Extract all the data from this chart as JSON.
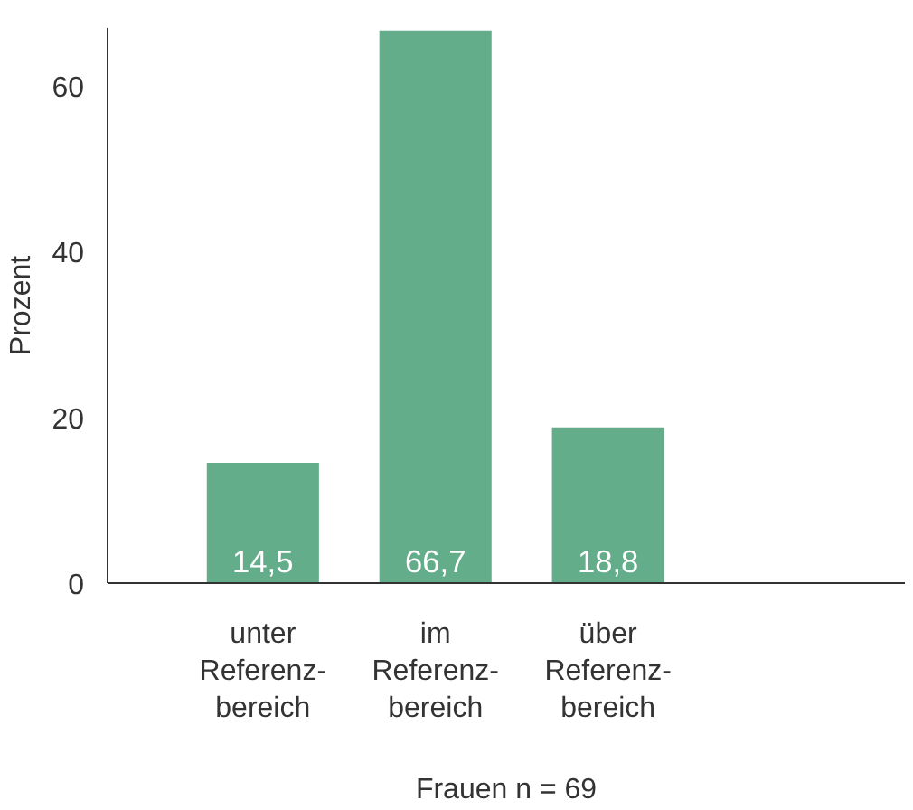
{
  "chart_data": {
    "type": "bar",
    "categories": [
      "unter\nReferenz-\nbereich",
      "im\nReferenz-\nbereich",
      "über\nReferenz-\nbereich"
    ],
    "values": [
      14.5,
      66.7,
      18.8
    ],
    "color": "#63ad8a",
    "ylabel": "Prozent",
    "xlabel": "Frauen n = 69",
    "ylim": [
      0,
      67
    ],
    "yticks": [
      0,
      20,
      40,
      60
    ],
    "value_labels": [
      "14,5",
      "66,7",
      "18,8"
    ],
    "grid": false
  }
}
